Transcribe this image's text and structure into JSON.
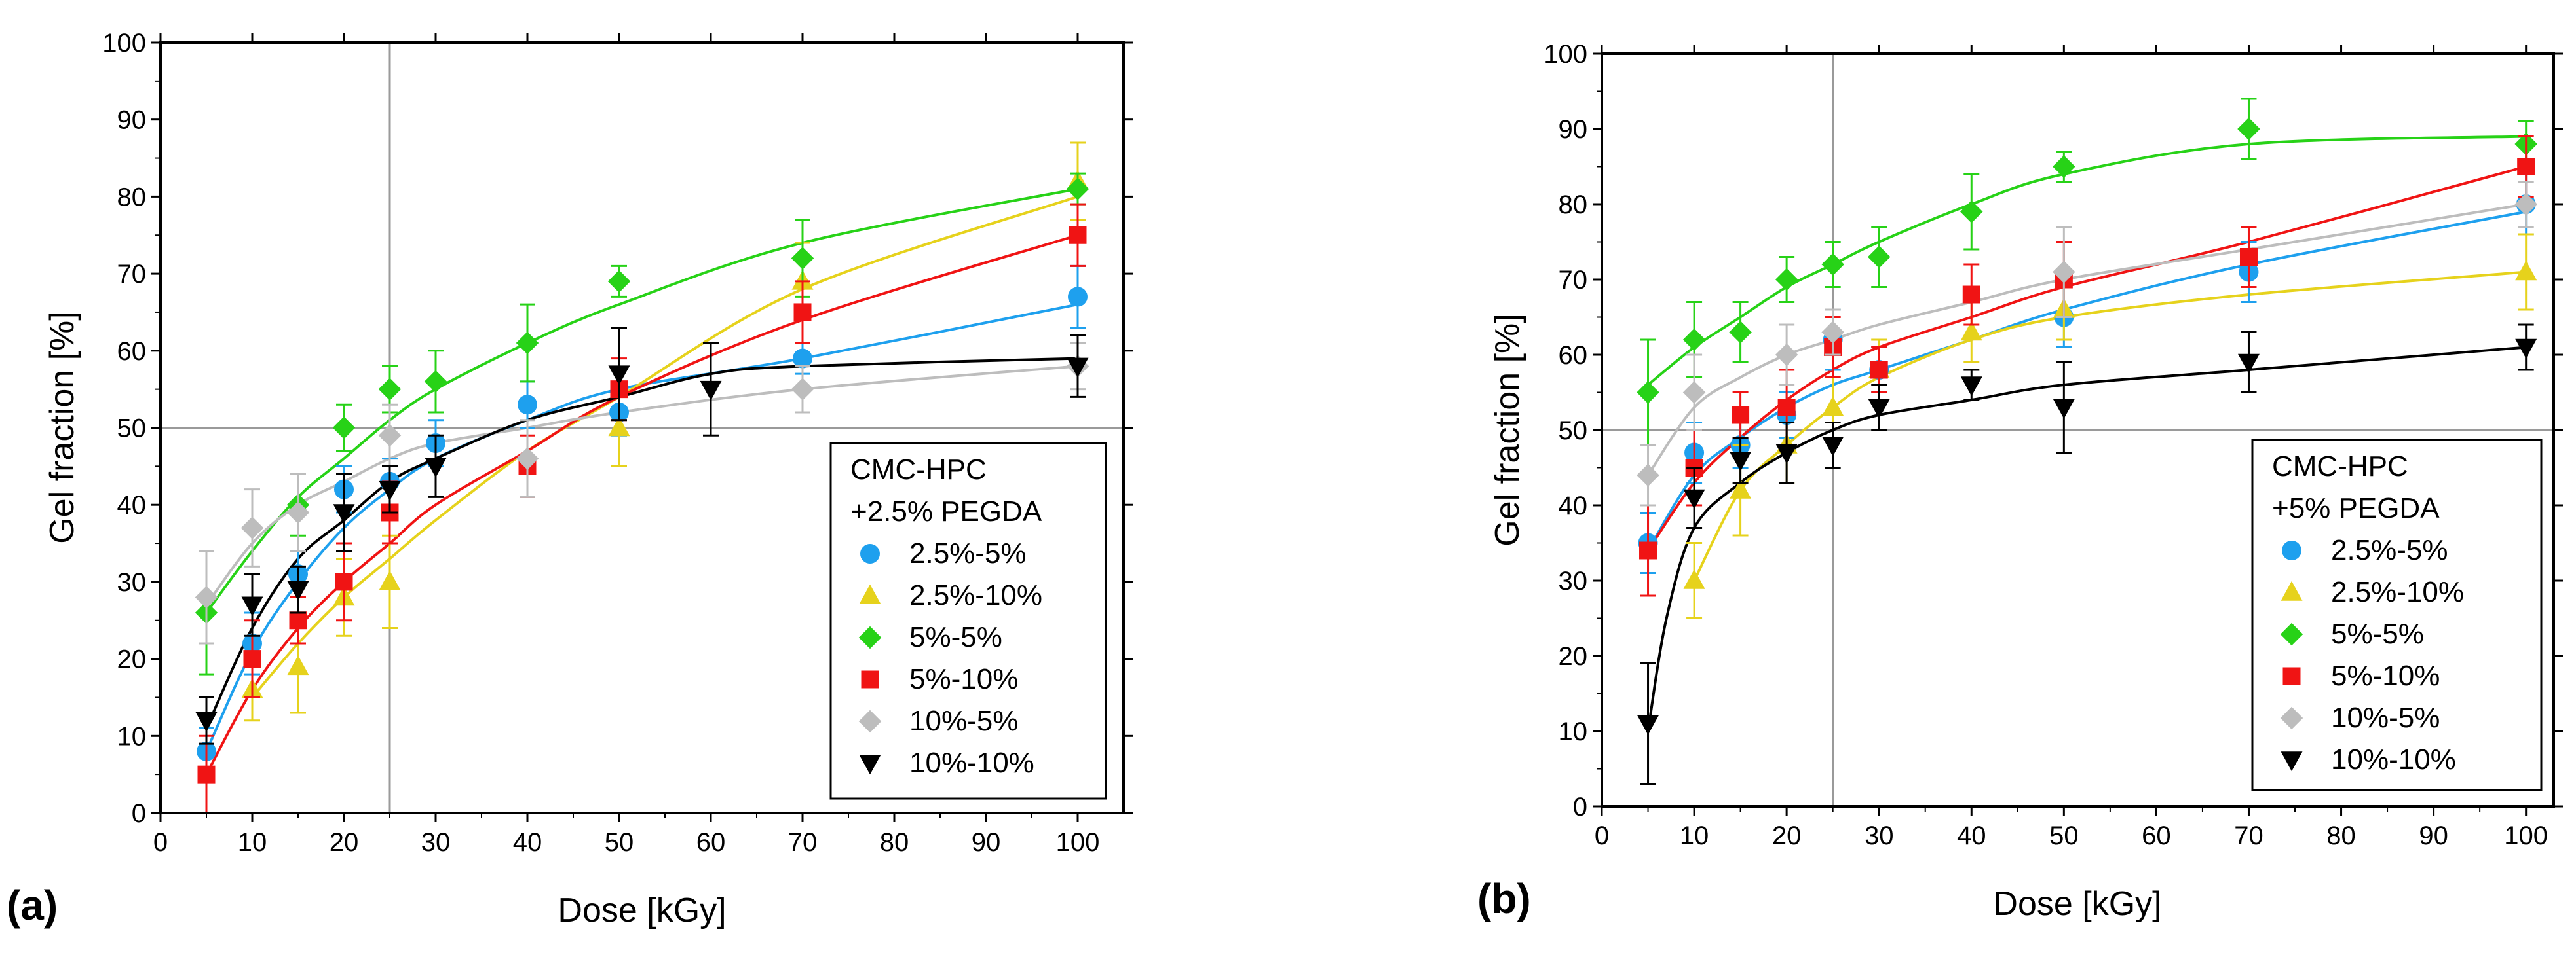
{
  "chart_data": [
    {
      "type": "scatter",
      "panel_label": "(a)",
      "xlabel": "Dose [kGy]",
      "ylabel": "Gel fraction [%]",
      "xlim": [
        0,
        105
      ],
      "ylim": [
        0,
        100
      ],
      "xticks": [
        0,
        10,
        20,
        30,
        40,
        50,
        60,
        70,
        80,
        90,
        100
      ],
      "yticks": [
        0,
        10,
        20,
        30,
        40,
        50,
        60,
        70,
        80,
        90,
        100
      ],
      "reference_lines": {
        "x": 25,
        "y": 50
      },
      "legend_title": [
        "CMC-HPC",
        "+2.5% PEGDA"
      ],
      "legend_position": "bottom-right",
      "series": [
        {
          "name": "2.5%-5%",
          "color": "#1ea0ee",
          "marker": "circle",
          "x": [
            5,
            10,
            15,
            20,
            25,
            30,
            40,
            50,
            70,
            100
          ],
          "y": [
            8,
            22,
            31,
            42,
            43,
            48,
            53,
            52,
            59,
            67
          ],
          "err": [
            3,
            4,
            3,
            3,
            3,
            3,
            3,
            3,
            2,
            4
          ],
          "fit": [
            [
              5,
              8
            ],
            [
              10,
              21
            ],
            [
              15,
              30
            ],
            [
              20,
              37
            ],
            [
              25,
              42
            ],
            [
              30,
              46
            ],
            [
              40,
              51
            ],
            [
              50,
              55
            ],
            [
              70,
              59
            ],
            [
              100,
              66
            ]
          ]
        },
        {
          "name": "2.5%-10%",
          "color": "#e6d21c",
          "marker": "triangle-up",
          "x": [
            10,
            15,
            20,
            25,
            50,
            70,
            100
          ],
          "y": [
            16,
            19,
            28,
            30,
            50,
            69,
            82
          ],
          "err": [
            4,
            6,
            5,
            6,
            5,
            5,
            5
          ],
          "fit": [
            [
              10,
              15
            ],
            [
              15,
              22
            ],
            [
              20,
              28
            ],
            [
              25,
              33
            ],
            [
              30,
              38
            ],
            [
              40,
              47
            ],
            [
              50,
              54
            ],
            [
              70,
              68
            ],
            [
              100,
              80
            ]
          ]
        },
        {
          "name": "5%-5%",
          "color": "#27d217",
          "marker": "diamond",
          "x": [
            5,
            15,
            20,
            25,
            30,
            40,
            50,
            70,
            100
          ],
          "y": [
            26,
            40,
            50,
            55,
            56,
            61,
            69,
            72,
            81
          ],
          "err": [
            8,
            4,
            3,
            3,
            4,
            5,
            2,
            5,
            2
          ],
          "fit": [
            [
              5,
              26
            ],
            [
              10,
              34
            ],
            [
              15,
              41
            ],
            [
              20,
              46
            ],
            [
              25,
              51
            ],
            [
              30,
              55
            ],
            [
              40,
              61
            ],
            [
              50,
              66
            ],
            [
              70,
              74
            ],
            [
              100,
              81
            ]
          ]
        },
        {
          "name": "5%-10%",
          "color": "#f01414",
          "marker": "square",
          "x": [
            5,
            10,
            15,
            20,
            25,
            40,
            50,
            70,
            100
          ],
          "y": [
            5,
            20,
            25,
            30,
            39,
            45,
            55,
            65,
            75
          ],
          "err": [
            5,
            5,
            3,
            5,
            4,
            4,
            4,
            4,
            4
          ],
          "fit": [
            [
              5,
              5
            ],
            [
              10,
              16
            ],
            [
              15,
              24
            ],
            [
              20,
              30
            ],
            [
              25,
              35
            ],
            [
              30,
              40
            ],
            [
              40,
              47
            ],
            [
              50,
              54
            ],
            [
              70,
              64
            ],
            [
              100,
              75
            ]
          ]
        },
        {
          "name": "10%-5%",
          "color": "#bdbdbd",
          "marker": "diamond",
          "x": [
            5,
            10,
            15,
            25,
            40,
            70,
            100
          ],
          "y": [
            28,
            37,
            39,
            49,
            46,
            55,
            58
          ],
          "err": [
            6,
            5,
            5,
            4,
            5,
            3,
            3
          ],
          "fit": [
            [
              5,
              27
            ],
            [
              10,
              35
            ],
            [
              15,
              40
            ],
            [
              20,
              43
            ],
            [
              25,
              46
            ],
            [
              30,
              48
            ],
            [
              40,
              50
            ],
            [
              50,
              52
            ],
            [
              70,
              55
            ],
            [
              100,
              58
            ]
          ]
        },
        {
          "name": "10%-10%",
          "color": "#000000",
          "marker": "triangle-down",
          "x": [
            5,
            10,
            15,
            20,
            25,
            30,
            50,
            60,
            100
          ],
          "y": [
            12,
            27,
            29,
            39,
            42,
            45,
            57,
            55,
            58
          ],
          "err": [
            3,
            4,
            3,
            5,
            3,
            4,
            6,
            6,
            4
          ],
          "fit": [
            [
              5,
              11
            ],
            [
              10,
              24
            ],
            [
              15,
              33
            ],
            [
              20,
              38
            ],
            [
              25,
              43
            ],
            [
              30,
              46
            ],
            [
              40,
              51
            ],
            [
              50,
              54
            ],
            [
              60,
              57
            ],
            [
              70,
              58
            ],
            [
              100,
              59
            ]
          ]
        }
      ]
    },
    {
      "type": "scatter",
      "panel_label": "(b)",
      "xlabel": "Dose [kGy]",
      "ylabel": "Gel fraction [%]",
      "xlim": [
        0,
        103
      ],
      "ylim": [
        0,
        100
      ],
      "xticks": [
        0,
        10,
        20,
        30,
        40,
        50,
        60,
        70,
        80,
        90,
        100
      ],
      "yticks": [
        0,
        10,
        20,
        30,
        40,
        50,
        60,
        70,
        80,
        90,
        100
      ],
      "reference_lines": {
        "x": 25,
        "y": 50
      },
      "legend_title": [
        "CMC-HPC",
        "+5% PEGDA"
      ],
      "legend_position": "bottom-right",
      "series": [
        {
          "name": "2.5%-5%",
          "color": "#1ea0ee",
          "marker": "circle",
          "x": [
            5,
            10,
            15,
            20,
            25,
            30,
            50,
            70,
            100
          ],
          "y": [
            35,
            47,
            48,
            52,
            62,
            58,
            65,
            71,
            80
          ],
          "err": [
            4,
            4,
            3,
            3,
            4,
            3,
            4,
            4,
            4
          ],
          "fit": [
            [
              5,
              34
            ],
            [
              10,
              44
            ],
            [
              15,
              49
            ],
            [
              20,
              53
            ],
            [
              25,
              56
            ],
            [
              30,
              58
            ],
            [
              40,
              62
            ],
            [
              50,
              66
            ],
            [
              70,
              72
            ],
            [
              100,
              79
            ]
          ]
        },
        {
          "name": "2.5%-10%",
          "color": "#e6d21c",
          "marker": "triangle-up",
          "x": [
            10,
            15,
            20,
            25,
            30,
            40,
            50,
            100
          ],
          "y": [
            30,
            42,
            48,
            53,
            58,
            63,
            66,
            71
          ],
          "err": [
            5,
            6,
            5,
            4,
            4,
            4,
            4,
            5
          ],
          "fit": [
            [
              10,
              30
            ],
            [
              15,
              42
            ],
            [
              20,
              48
            ],
            [
              25,
              53
            ],
            [
              30,
              57
            ],
            [
              40,
              62
            ],
            [
              50,
              65
            ],
            [
              70,
              68
            ],
            [
              100,
              71
            ]
          ]
        },
        {
          "name": "5%-5%",
          "color": "#27d217",
          "marker": "diamond",
          "x": [
            5,
            10,
            15,
            20,
            25,
            30,
            40,
            50,
            70,
            100
          ],
          "y": [
            55,
            62,
            63,
            70,
            72,
            73,
            79,
            85,
            90,
            88
          ],
          "err": [
            7,
            5,
            4,
            3,
            3,
            4,
            5,
            2,
            4,
            3
          ],
          "fit": [
            [
              5,
              56
            ],
            [
              10,
              61
            ],
            [
              15,
              65
            ],
            [
              20,
              69
            ],
            [
              25,
              72
            ],
            [
              30,
              75
            ],
            [
              40,
              80
            ],
            [
              50,
              84
            ],
            [
              70,
              88
            ],
            [
              100,
              89
            ]
          ]
        },
        {
          "name": "5%-10%",
          "color": "#f01414",
          "marker": "square",
          "x": [
            5,
            10,
            15,
            20,
            25,
            30,
            40,
            50,
            70,
            100
          ],
          "y": [
            34,
            45,
            52,
            53,
            61,
            58,
            68,
            70,
            73,
            85
          ],
          "err": [
            6,
            5,
            3,
            5,
            4,
            3,
            4,
            5,
            4,
            4
          ],
          "fit": [
            [
              5,
              34
            ],
            [
              10,
              43
            ],
            [
              15,
              49
            ],
            [
              20,
              54
            ],
            [
              25,
              58
            ],
            [
              30,
              61
            ],
            [
              40,
              65
            ],
            [
              50,
              69
            ],
            [
              70,
              75
            ],
            [
              100,
              85
            ]
          ]
        },
        {
          "name": "10%-5%",
          "color": "#bdbdbd",
          "marker": "diamond",
          "x": [
            5,
            10,
            20,
            25,
            50,
            100
          ],
          "y": [
            44,
            55,
            60,
            63,
            71,
            80
          ],
          "err": [
            4,
            5,
            4,
            3,
            6,
            3
          ],
          "fit": [
            [
              5,
              44
            ],
            [
              10,
              53
            ],
            [
              15,
              57
            ],
            [
              20,
              60
            ],
            [
              25,
              62
            ],
            [
              30,
              64
            ],
            [
              40,
              67
            ],
            [
              50,
              70
            ],
            [
              70,
              74
            ],
            [
              100,
              80
            ]
          ]
        },
        {
          "name": "10%-10%",
          "color": "#000000",
          "marker": "triangle-down",
          "x": [
            5,
            10,
            15,
            20,
            25,
            30,
            40,
            50,
            70,
            100
          ],
          "y": [
            11,
            41,
            46,
            47,
            48,
            53,
            56,
            53,
            59,
            61
          ],
          "err": [
            8,
            4,
            3,
            4,
            3,
            3,
            2,
            6,
            4,
            3
          ],
          "fit": [
            [
              5,
              10
            ],
            [
              7,
              25
            ],
            [
              10,
              37
            ],
            [
              15,
              43
            ],
            [
              20,
              47
            ],
            [
              25,
              50
            ],
            [
              30,
              52
            ],
            [
              40,
              54
            ],
            [
              50,
              56
            ],
            [
              70,
              58
            ],
            [
              100,
              61
            ]
          ]
        }
      ]
    }
  ]
}
